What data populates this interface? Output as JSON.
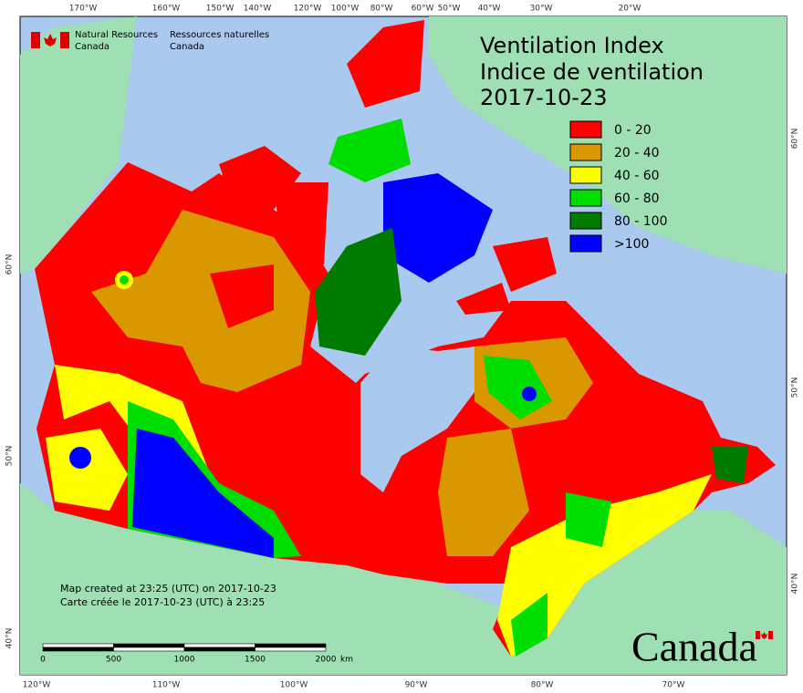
{
  "header": {
    "title_en": "Ventilation Index",
    "title_fr": "Indice de ventilation",
    "date": "2017-10-23"
  },
  "legend": {
    "items": [
      {
        "label": "0 - 20",
        "color": "#ff0000"
      },
      {
        "label": "20 - 40",
        "color": "#d99800"
      },
      {
        "label": "40 - 60",
        "color": "#ffff00"
      },
      {
        "label": "60 - 80",
        "color": "#00dd00"
      },
      {
        "label": "80 - 100",
        "color": "#007a00"
      },
      {
        "label": ">100",
        "color": "#0000ff"
      }
    ]
  },
  "graticule": {
    "top": [
      "170°W",
      "160°W",
      "150°W",
      "140°W",
      "120°W",
      "100°W",
      "80°W",
      "60°W",
      "50°W",
      "40°W",
      "30°W",
      "20°W"
    ],
    "bottom": [
      "120°W",
      "110°W",
      "100°W",
      "90°W",
      "80°W",
      "70°W"
    ],
    "left": [
      "60°N",
      "50°N",
      "40°N"
    ],
    "right": [
      "60°N",
      "50°N",
      "40°N"
    ]
  },
  "logo": {
    "en_line1": "Natural Resources",
    "en_line2": "Canada",
    "fr_line1": "Ressources naturelles",
    "fr_line2": "Canada"
  },
  "credits": [
    "Map created at 23:25 (UTC) on 2017-10-23",
    "Carte créée le 2017-10-23 (UTC) à 23:25"
  ],
  "scale_bar": {
    "labels": [
      "0",
      "500",
      "1000",
      "1500",
      "2000"
    ],
    "unit": "km"
  },
  "wordmark": "Canada"
}
